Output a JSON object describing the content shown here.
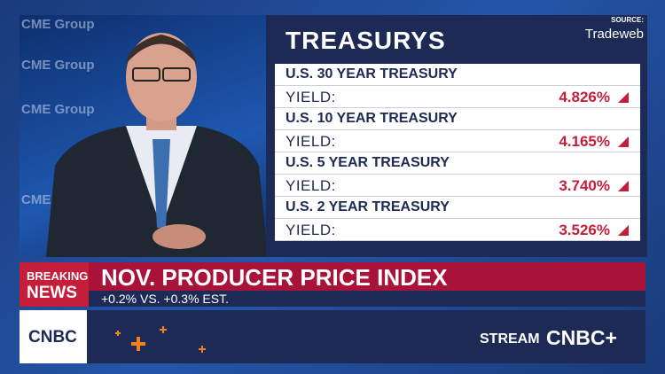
{
  "background": {
    "wall_texts": [
      "CME Group",
      "CME Group",
      "CME Group",
      "CME Group"
    ]
  },
  "source": {
    "label": "SOURCE:",
    "name": "Tradeweb"
  },
  "panel": {
    "title": "TREASURYS",
    "rows": [
      {
        "name": "U.S. 30 YEAR TREASURY",
        "label": "YIELD:",
        "value": "4.826%"
      },
      {
        "name": "U.S. 10 YEAR TREASURY",
        "label": "YIELD:",
        "value": "4.165%"
      },
      {
        "name": "U.S. 5 YEAR TREASURY",
        "label": "YIELD:",
        "value": "3.740%"
      },
      {
        "name": "U.S. 2 YEAR TREASURY",
        "label": "YIELD:",
        "value": "3.526%"
      }
    ]
  },
  "banner": {
    "tag_top": "BREAKING",
    "tag_bottom": "NEWS",
    "headline": "NOV. PRODUCER PRICE INDEX",
    "subheadline": "+0.2% VS. +0.3% EST."
  },
  "footer": {
    "logo": "CNBC",
    "stream": "STREAM",
    "stream_brand": "CNBC+"
  }
}
